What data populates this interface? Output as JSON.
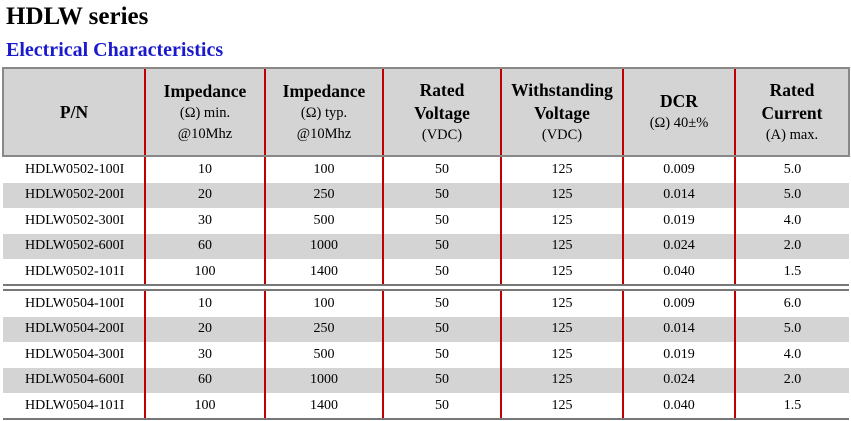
{
  "header": {
    "title": "HDLW series",
    "subtitle": "Electrical Characteristics"
  },
  "table": {
    "columns": [
      {
        "lines": [
          "P/N"
        ],
        "sub": []
      },
      {
        "lines": [
          "Impedance"
        ],
        "sub": [
          "(Ω) min.",
          "@10Mhz"
        ]
      },
      {
        "lines": [
          "Impedance"
        ],
        "sub": [
          "(Ω) typ.",
          "@10Mhz"
        ]
      },
      {
        "lines": [
          "Rated",
          "Voltage"
        ],
        "sub": [
          "(VDC)"
        ]
      },
      {
        "lines": [
          "Withstanding",
          "Voltage"
        ],
        "sub": [
          "(VDC)"
        ]
      },
      {
        "lines": [
          "DCR"
        ],
        "sub": [
          "(Ω) 40±%"
        ]
      },
      {
        "lines": [
          "Rated",
          "Current"
        ],
        "sub": [
          "(A) max."
        ]
      }
    ],
    "groups": [
      [
        [
          "HDLW0502-100I",
          "10",
          "100",
          "50",
          "125",
          "0.009",
          "5.0"
        ],
        [
          "HDLW0502-200I",
          "20",
          "250",
          "50",
          "125",
          "0.014",
          "5.0"
        ],
        [
          "HDLW0502-300I",
          "30",
          "500",
          "50",
          "125",
          "0.019",
          "4.0"
        ],
        [
          "HDLW0502-600I",
          "60",
          "1000",
          "50",
          "125",
          "0.024",
          "2.0"
        ],
        [
          "HDLW0502-101I",
          "100",
          "1400",
          "50",
          "125",
          "0.040",
          "1.5"
        ]
      ],
      [
        [
          "HDLW0504-100I",
          "10",
          "100",
          "50",
          "125",
          "0.009",
          "6.0"
        ],
        [
          "HDLW0504-200I",
          "20",
          "250",
          "50",
          "125",
          "0.014",
          "5.0"
        ],
        [
          "HDLW0504-300I",
          "30",
          "500",
          "50",
          "125",
          "0.019",
          "4.0"
        ],
        [
          "HDLW0504-600I",
          "60",
          "1000",
          "50",
          "125",
          "0.024",
          "2.0"
        ],
        [
          "HDLW0504-101I",
          "100",
          "1400",
          "50",
          "125",
          "0.040",
          "1.5"
        ]
      ]
    ]
  }
}
